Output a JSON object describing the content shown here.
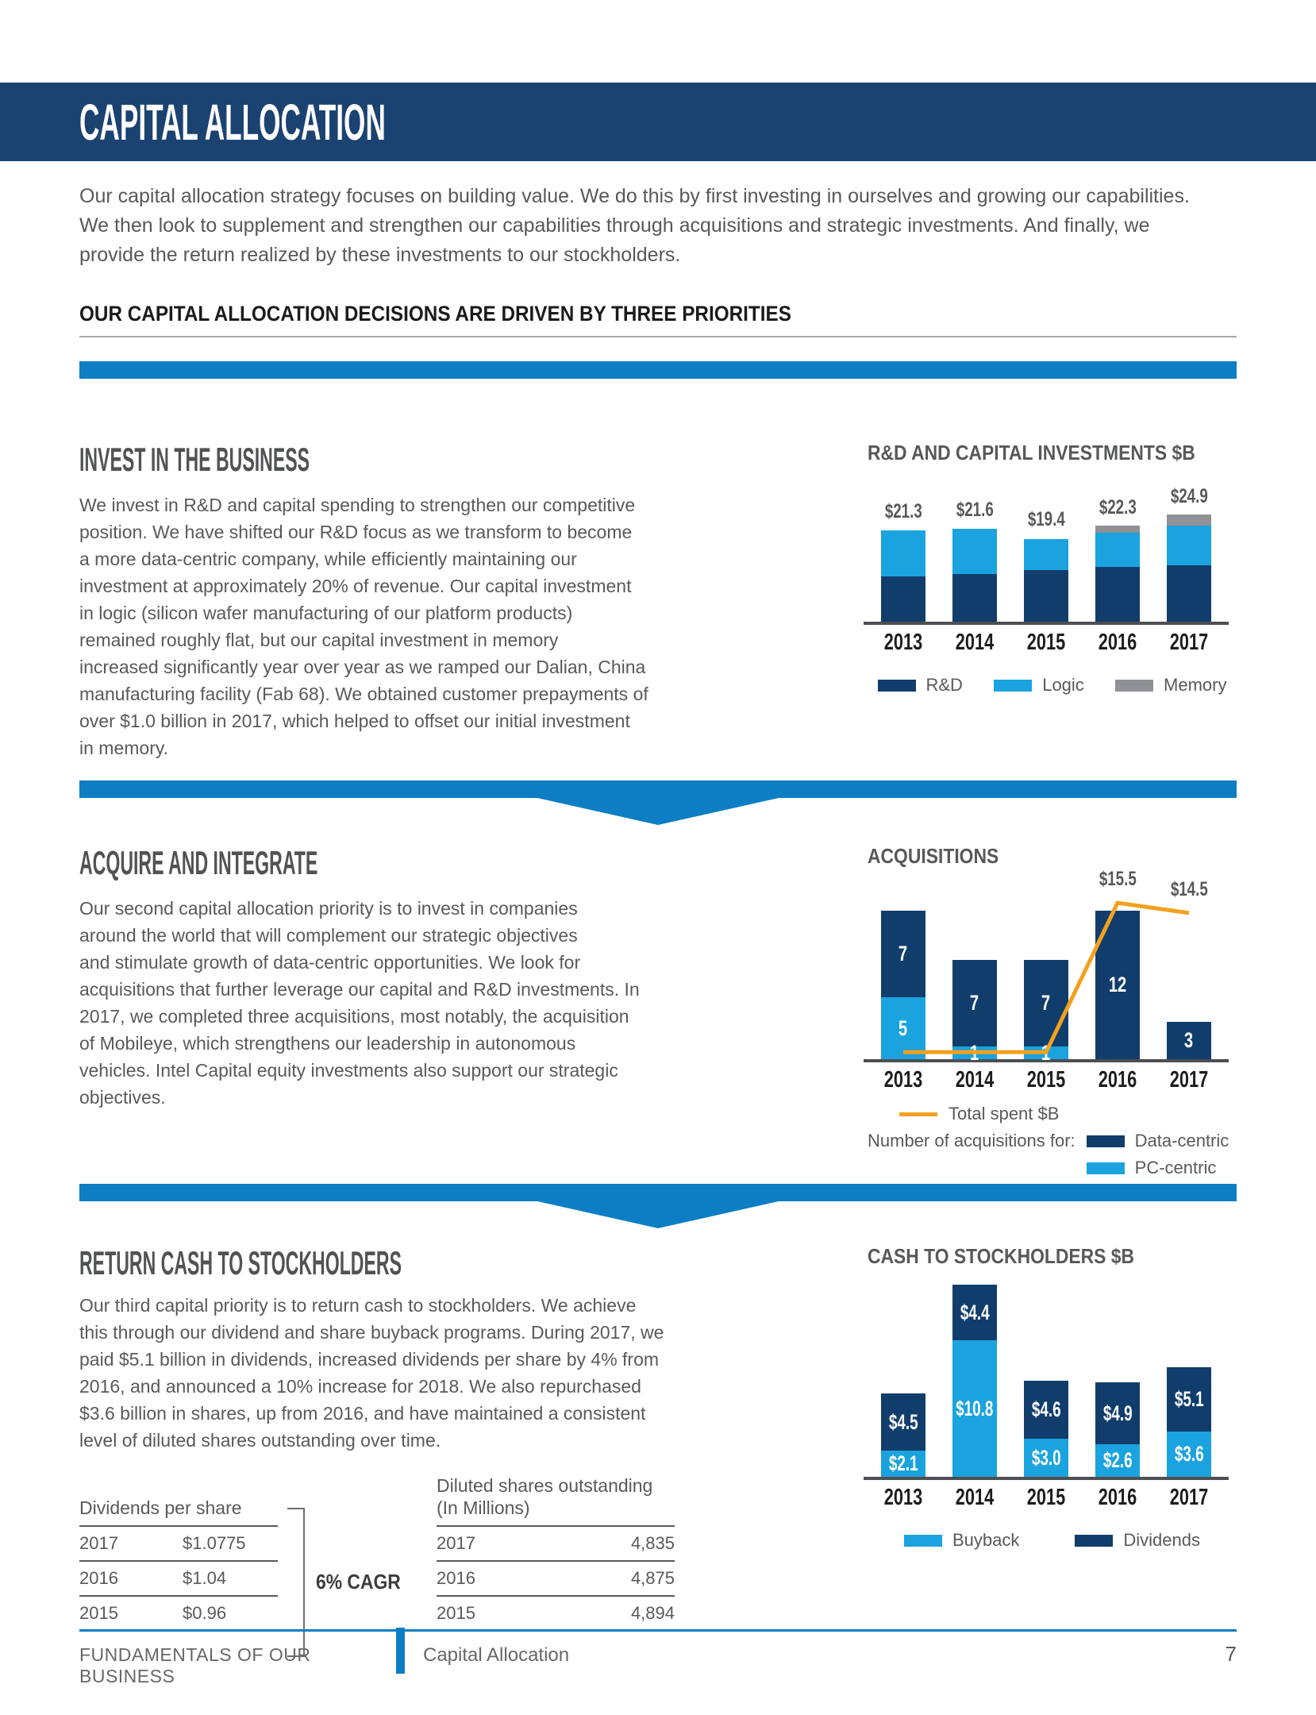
{
  "banner": {
    "title": "CAPITAL ALLOCATION"
  },
  "intro": "Our capital allocation strategy focuses on building value. We do this by first investing in ourselves and growing our capabilities.\nWe then look to supplement and strengthen our capabilities through acquisitions and strategic investments. And finally, we\nprovide the return realized by these investments to our stockholders.",
  "priorities_heading": "OUR CAPITAL ALLOCATION DECISIONS ARE DRIVEN BY THREE PRIORITIES",
  "sections": {
    "invest": {
      "heading": "INVEST IN THE BUSINESS",
      "body": "We invest in R&D and capital spending to strengthen our competitive\nposition. We have shifted our R&D focus as we transform to become\na more data-centric company, while efficiently maintaining our\ninvestment at approximately 20% of revenue. Our capital investment\nin logic (silicon wafer manufacturing of our platform products)\nremained roughly flat, but our capital investment in memory\nincreased significantly year over year as we ramped our Dalian, China\nmanufacturing facility (Fab 68). We obtained customer prepayments of\nover $1.0 billion in 2017, which helped to offset our initial investment\nin memory."
    },
    "acquire": {
      "heading": "ACQUIRE AND INTEGRATE",
      "body": "Our second capital allocation priority is to invest in companies\naround the world that will complement our strategic objectives\nand stimulate growth of data-centric opportunities. We look for\nacquisitions that further leverage our capital and R&D investments. In\n2017, we completed three acquisitions, most notably, the acquisition\nof Mobileye, which strengthens our leadership in autonomous\nvehicles. Intel Capital equity investments also support our strategic\nobjectives.",
      "note": "2017, we completed three acquisitions, most notably, the acquisition of Mobileye"
    },
    "return": {
      "heading": "RETURN CASH TO STOCKHOLDERS",
      "body": "Our third capital priority is to return cash to stockholders. We achieve\nthis through our dividend and share buyback programs. During 2017, we\npaid $5.1 billion in dividends, increased dividends per share by 4% from\n2016, and announced a 10% increase for 2018. We also repurchased\n$3.6 billion in shares, up from 2016, and have maintained a consistent\nlevel of diluted shares outstanding over time."
    }
  },
  "chart_data": [
    {
      "type": "bar",
      "stacked": true,
      "title": "R&D AND CAPITAL INVESTMENTS $B",
      "categories": [
        "2013",
        "2014",
        "2015",
        "2016",
        "2017"
      ],
      "series": [
        {
          "name": "R&D",
          "color": "#113d6c",
          "values": [
            10.6,
            11.1,
            12.1,
            12.7,
            13.1
          ]
        },
        {
          "name": "Logic",
          "color": "#1aa3de",
          "values": [
            10.7,
            10.5,
            7.3,
            8.0,
            9.2
          ]
        },
        {
          "name": "Memory",
          "color": "#8f9194",
          "values": [
            0,
            0,
            0,
            1.6,
            2.6
          ]
        }
      ],
      "totals_labels": [
        "$21.3",
        "$21.6",
        "$19.4",
        "$22.3",
        "$24.9"
      ],
      "ylim": [
        0,
        26
      ],
      "grid": false,
      "legend_position": "bottom"
    },
    {
      "type": "bar+line",
      "stacked": true,
      "title": "ACQUISITIONS",
      "categories": [
        "2013",
        "2014",
        "2015",
        "2016",
        "2017"
      ],
      "series": [
        {
          "name": "PC-centric",
          "color": "#1aa3de",
          "values": [
            5,
            1,
            1,
            0,
            0
          ]
        },
        {
          "name": "Data-centric",
          "color": "#113d6c",
          "values": [
            7,
            7,
            7,
            12,
            3
          ]
        }
      ],
      "line": {
        "name": "Total spent $B",
        "color": "#f3a11e",
        "values": [
          0.7,
          0.7,
          0.7,
          15.5,
          14.5
        ],
        "labels": {
          "3": "$15.5",
          "4": "$14.5"
        }
      },
      "legend_note": "Number of acquisitions for:",
      "ylim": [
        0,
        13
      ],
      "grid": false,
      "legend_position": "bottom"
    },
    {
      "type": "bar",
      "stacked": true,
      "title": "CASH TO STOCKHOLDERS $B",
      "categories": [
        "2013",
        "2014",
        "2015",
        "2016",
        "2017"
      ],
      "series": [
        {
          "name": "Buyback",
          "color": "#1aa3de",
          "values": [
            2.1,
            10.8,
            3.0,
            2.6,
            3.6
          ],
          "labels": [
            "$2.1",
            "$10.8",
            "$3.0",
            "$2.6",
            "$3.6"
          ]
        },
        {
          "name": "Dividends",
          "color": "#113d6c",
          "values": [
            4.5,
            4.4,
            4.6,
            4.9,
            5.1
          ],
          "labels": [
            "$4.5",
            "$4.4",
            "$4.6",
            "$4.9",
            "$5.1"
          ]
        }
      ],
      "ylim": [
        0,
        16
      ],
      "grid": false,
      "legend_position": "bottom"
    }
  ],
  "tables": {
    "dividends": {
      "title": "Dividends per share",
      "rows": [
        [
          "2017",
          "$1.0775"
        ],
        [
          "2016",
          "$1.04"
        ],
        [
          "2015",
          "$0.96"
        ]
      ],
      "cagr_label": "6% CAGR"
    },
    "shares": {
      "title_line1": "Diluted shares outstanding",
      "title_line2": "(In Millions)",
      "rows": [
        [
          "2017",
          "4,835"
        ],
        [
          "2016",
          "4,875"
        ],
        [
          "2015",
          "4,894"
        ]
      ]
    }
  },
  "footer": {
    "left": "FUNDAMENTALS OF OUR BUSINESS",
    "section": "Capital Allocation",
    "page": "7"
  },
  "colors": {
    "banner_navy": "#1b4371",
    "dark_navy": "#113d6c",
    "bright_blue": "#0d7ec3",
    "light_blue": "#1aa3de",
    "memory_gray": "#8f9194",
    "orange": "#f3a11e",
    "body_gray": "#58595b"
  }
}
